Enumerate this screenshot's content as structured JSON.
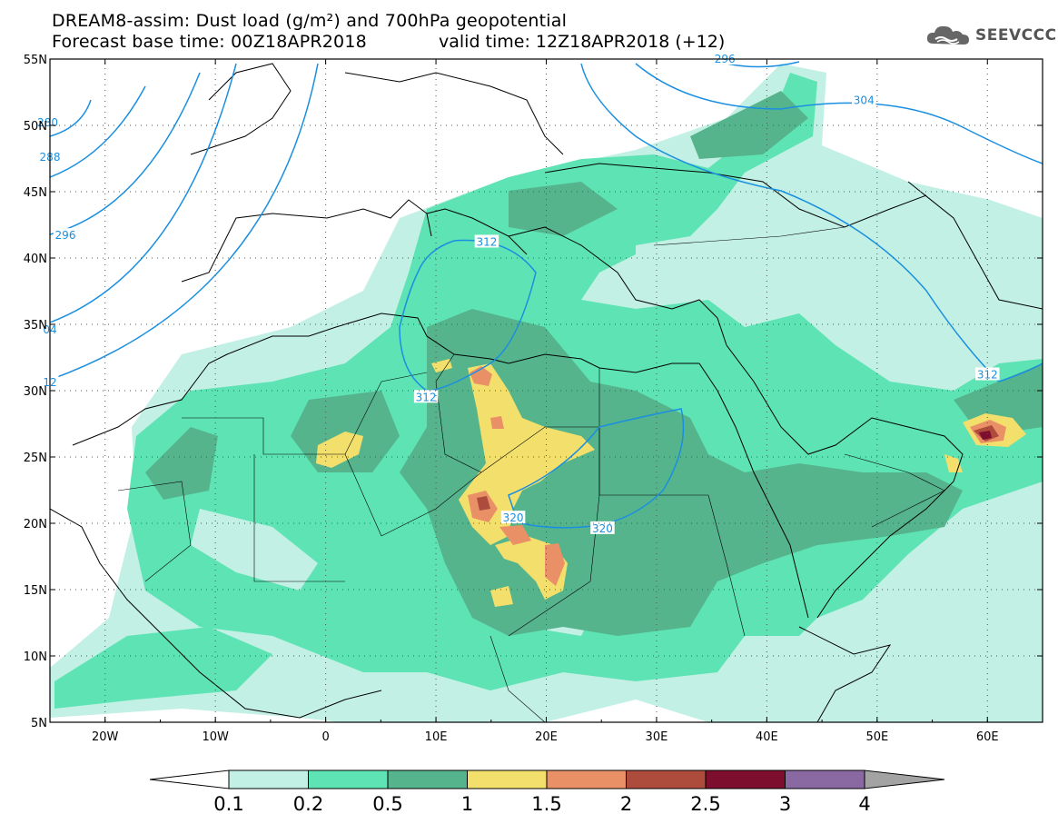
{
  "header": {
    "title_line1": "DREAM8-assim: Dust load (g/m²) and 700hPa geopotential",
    "title_line2": "Forecast base time: 00Z18APR2018",
    "valid_time": "valid time: 12Z18APR2018 (+12)",
    "logo_text": "SEEVCCC",
    "logo_icon": "cloud-icon"
  },
  "map": {
    "lon_range": [
      -25,
      65
    ],
    "lat_range": [
      5,
      55
    ],
    "lon_ticks": [
      {
        "value": -20,
        "label": "20W"
      },
      {
        "value": -10,
        "label": "10W"
      },
      {
        "value": 0,
        "label": "0"
      },
      {
        "value": 10,
        "label": "10E"
      },
      {
        "value": 20,
        "label": "20E"
      },
      {
        "value": 30,
        "label": "30E"
      },
      {
        "value": 40,
        "label": "40E"
      },
      {
        "value": 50,
        "label": "50E"
      },
      {
        "value": 60,
        "label": "60E"
      }
    ],
    "lat_ticks": [
      {
        "value": 55,
        "label": "55N"
      },
      {
        "value": 50,
        "label": "50N"
      },
      {
        "value": 45,
        "label": "45N"
      },
      {
        "value": 40,
        "label": "40N"
      },
      {
        "value": 35,
        "label": "35N"
      },
      {
        "value": 30,
        "label": "30N"
      },
      {
        "value": 25,
        "label": "25N"
      },
      {
        "value": 20,
        "label": "20N"
      },
      {
        "value": 15,
        "label": "15N"
      },
      {
        "value": 10,
        "label": "10N"
      },
      {
        "value": 5,
        "label": "5N"
      }
    ],
    "contour_color": "#1a8fe0",
    "contour_labels": [
      {
        "text": "280",
        "lon": -25.2,
        "lat": 50.2
      },
      {
        "text": "288",
        "lon": -25.0,
        "lat": 47.6
      },
      {
        "text": "296",
        "lon": -23.6,
        "lat": 41.7
      },
      {
        "text": "04",
        "lon": -25.0,
        "lat": 34.6
      },
      {
        "text": "12",
        "lon": -25.0,
        "lat": 30.6
      },
      {
        "text": "312",
        "lon": 14.6,
        "lat": 41.2
      },
      {
        "text": "312",
        "lon": 9.1,
        "lat": 29.5
      },
      {
        "text": "320",
        "lon": 17.0,
        "lat": 20.4
      },
      {
        "text": "320",
        "lon": 25.1,
        "lat": 19.6
      },
      {
        "text": "296",
        "lon": 36.2,
        "lat": 55.0
      },
      {
        "text": "304",
        "lon": 48.8,
        "lat": 51.9
      },
      {
        "text": "312",
        "lon": 60.0,
        "lat": 31.2
      }
    ]
  },
  "colorbar": {
    "levels": [
      "0.1",
      "0.2",
      "0.5",
      "1",
      "1.5",
      "2",
      "2.5",
      "3",
      "4"
    ],
    "colors": [
      "#c2f0e4",
      "#5ee3b4",
      "#56b48c",
      "#f3e06c",
      "#ea9066",
      "#ad4b3c",
      "#7d0e2e",
      "#8a69a2"
    ],
    "under_color": "#ffffff",
    "over_color": "#a3a3a3"
  }
}
